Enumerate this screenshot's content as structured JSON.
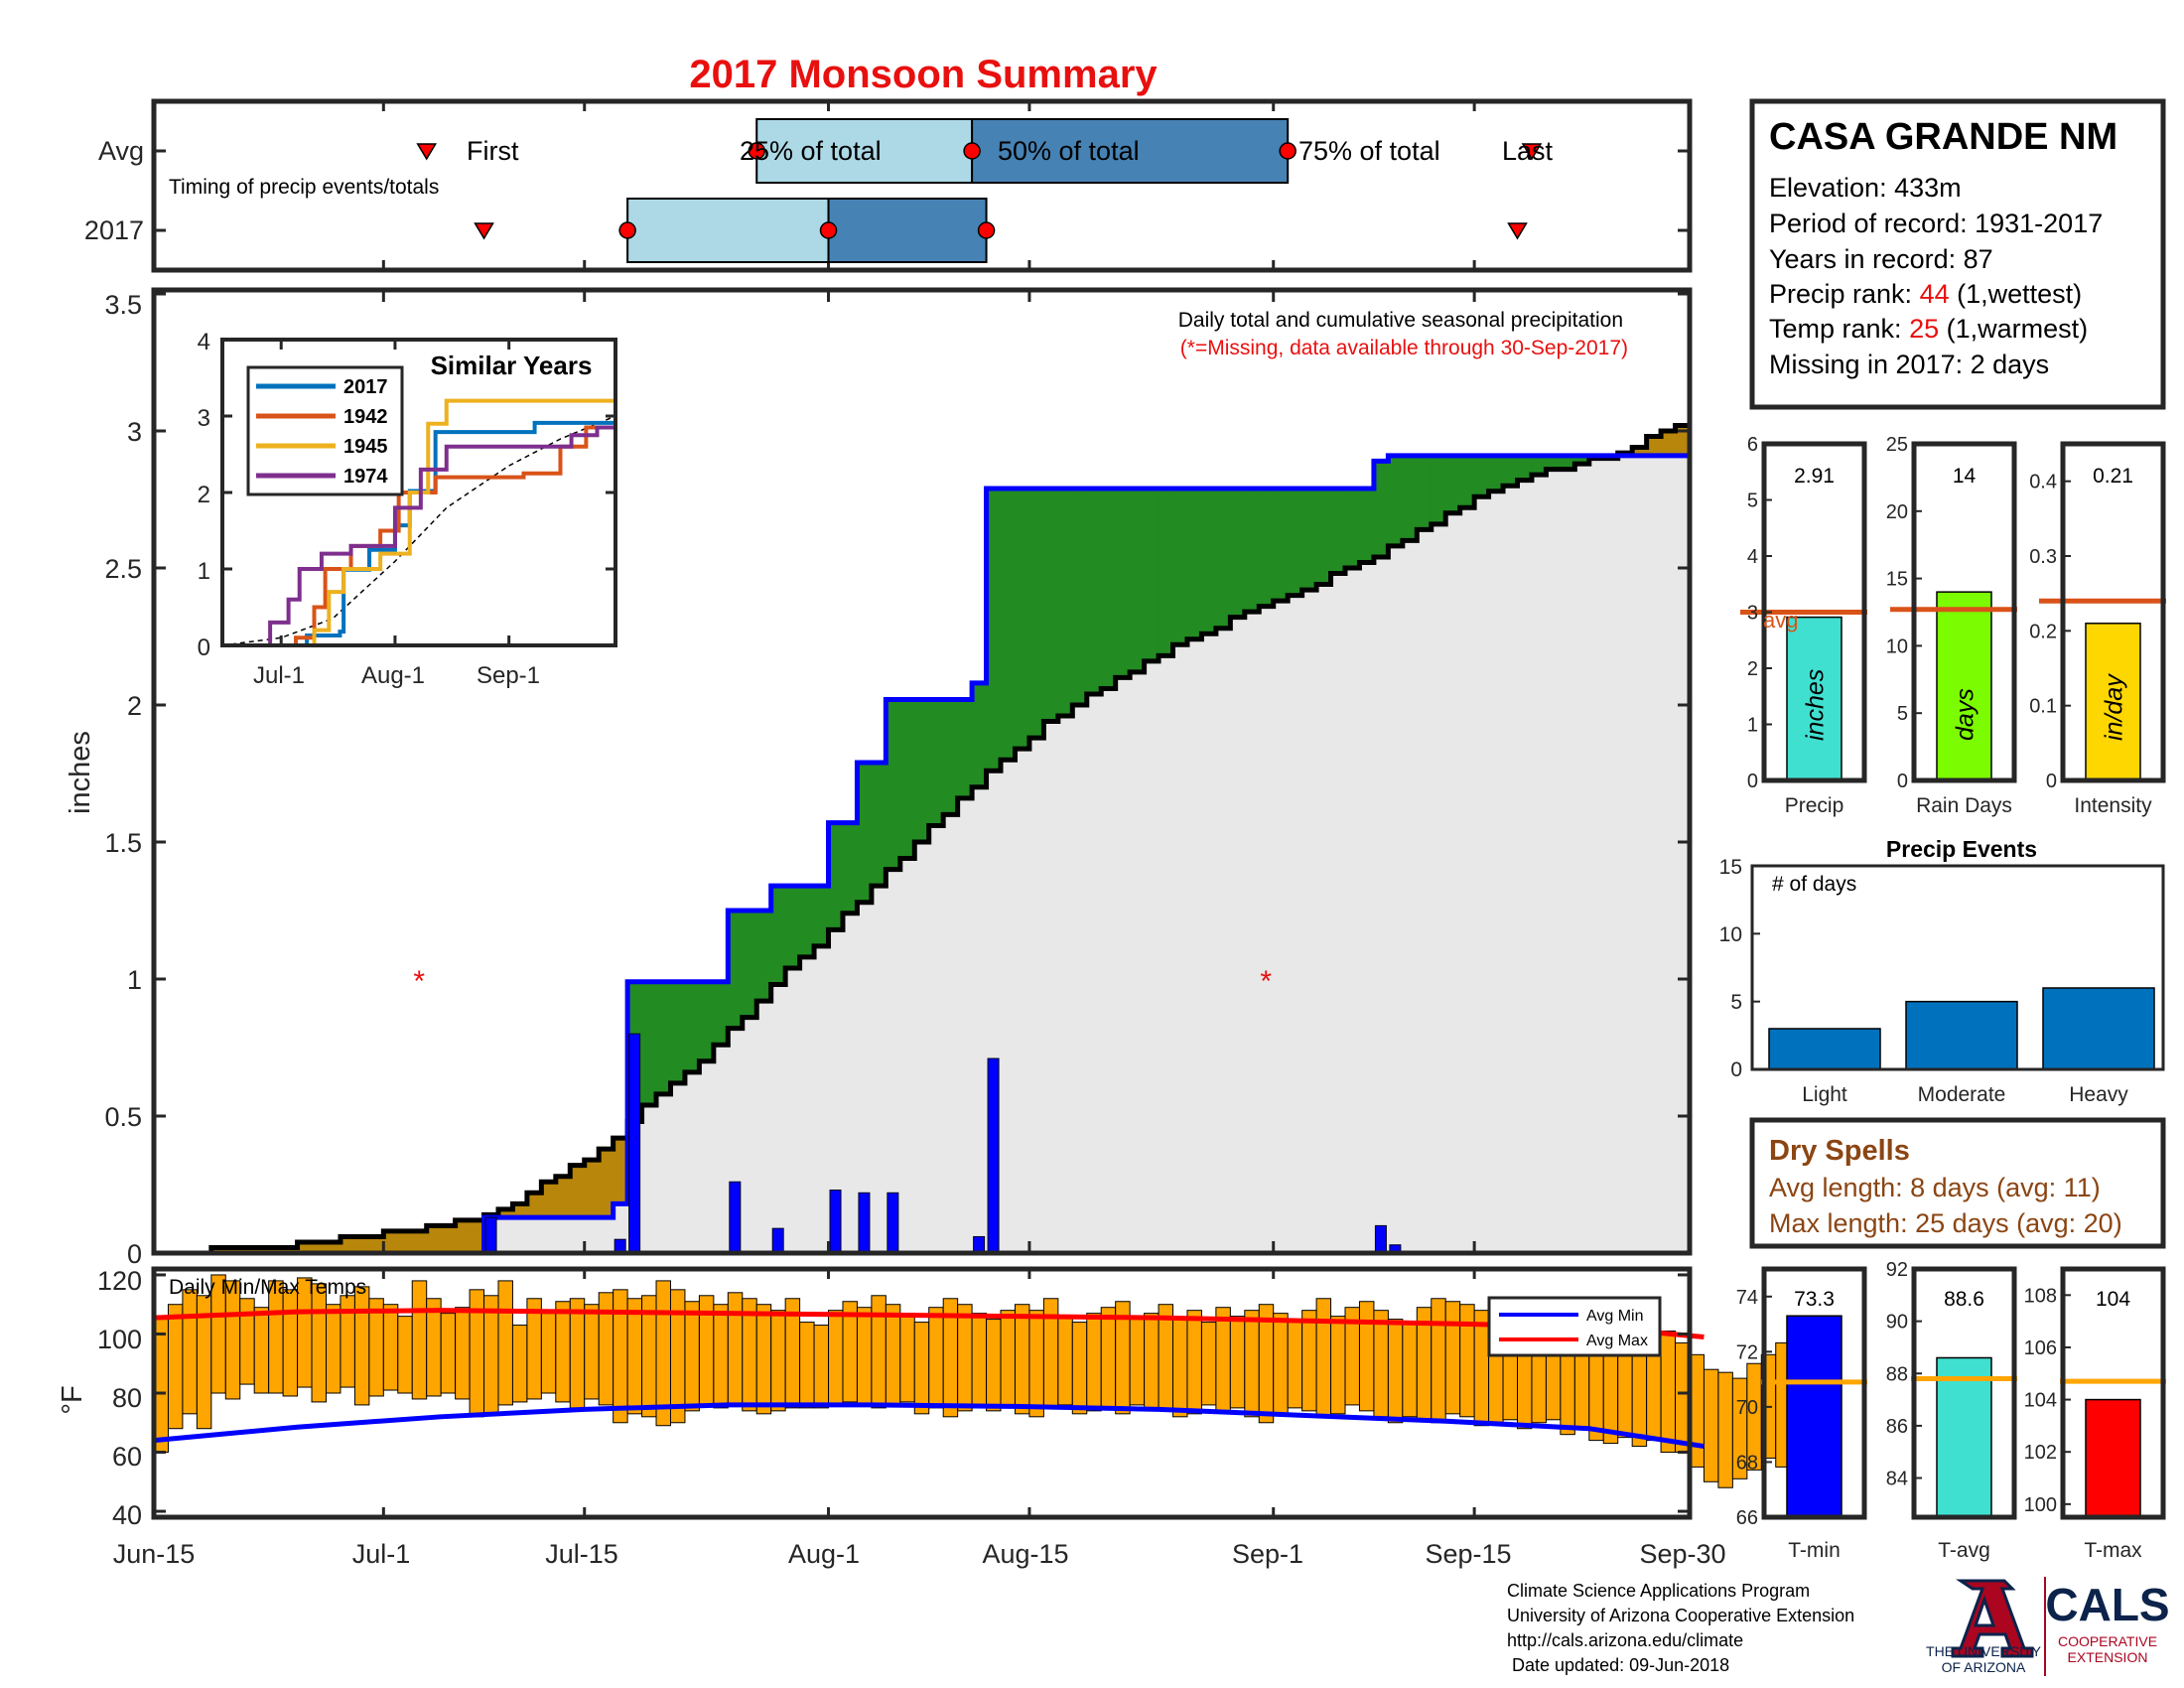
{
  "title": "2017 Monsoon Summary",
  "station": {
    "name": "CASA GRANDE NM",
    "lines": [
      {
        "label": "Elevation: 433m"
      },
      {
        "label": "Period of record: 1931-2017"
      },
      {
        "label": "Years in record: 87"
      },
      {
        "label": "Precip rank: ",
        "value": "44",
        "suffix": " (1,wettest)"
      },
      {
        "label": "Temp rank: ",
        "value": "25",
        "suffix": " (1,warmest)"
      },
      {
        "label": "Missing in 2017: 2 days"
      }
    ]
  },
  "timing": {
    "label": "Timing of precip events/totals",
    "rows": [
      "Avg",
      "2017"
    ],
    "avg_labels": {
      "first": "First",
      "p25": "25% of total",
      "p50": "50% of total",
      "p75": "75% of total",
      "last": "Last"
    },
    "avg": {
      "first": "Jul-04",
      "p25": "Jul-27",
      "p50": "Aug-11",
      "p75": "Sep-02",
      "last": "Sep-19"
    },
    "y2017": {
      "first": "Jul-08",
      "p25": "Jul-18",
      "p50": "Aug-01",
      "p75": "Aug-12",
      "last": "Sep-18"
    }
  },
  "main": {
    "annotation": "Daily total and cumulative seasonal precipitation",
    "missing_note": "(*=Missing, data available through 30-Sep-2017)",
    "ylabel": "inches",
    "ylim": [
      0,
      3.5
    ],
    "yticks": [
      "0",
      "0.5",
      "1",
      "1.5",
      "2",
      "2.5",
      "3",
      "3.5"
    ],
    "missing_days": [
      "Jul-03",
      "Aug-31"
    ]
  },
  "temps": {
    "label": "Daily Min/Max Temps",
    "ylabel": "°F",
    "yticks": [
      "40",
      "60",
      "80",
      "100",
      "120"
    ],
    "legend": [
      "Avg Min",
      "Avg Max"
    ]
  },
  "xaxis": {
    "ticks": [
      "Jun-15",
      "Jul-1",
      "Jul-15",
      "Aug-1",
      "Aug-15",
      "Sep-1",
      "Sep-15",
      "Sep-30"
    ]
  },
  "inset": {
    "title": "Similar Years",
    "yticks": [
      "0",
      "1",
      "2",
      "3",
      "4"
    ],
    "xticks": [
      "Jul-1",
      "Aug-1",
      "Sep-1"
    ],
    "legend": [
      "2017",
      "1942",
      "1945",
      "1974"
    ],
    "colors": [
      "#0072BD",
      "#D95319",
      "#EDB120",
      "#7E2F8E"
    ]
  },
  "small_bars": [
    {
      "label": "Precip",
      "inner": "inches",
      "value": "2.91",
      "avg_label": "avg",
      "yticks": [
        "0",
        "1",
        "2",
        "3",
        "4",
        "5",
        "6"
      ],
      "color": "#40E0D0"
    },
    {
      "label": "Rain Days",
      "inner": "days",
      "value": "14",
      "yticks": [
        "0",
        "5",
        "10",
        "15",
        "20",
        "25"
      ],
      "color": "#7CFC00"
    },
    {
      "label": "Intensity",
      "inner": "in/day",
      "value": "0.21",
      "yticks": [
        "0",
        "0.1",
        "0.2",
        "0.3",
        "0.4"
      ],
      "color": "#FFD700"
    }
  ],
  "events": {
    "title": "Precip Events",
    "sublabel": "# of days",
    "categories": [
      "Light",
      "Moderate",
      "Heavy"
    ],
    "yticks": [
      "0",
      "5",
      "10",
      "15"
    ]
  },
  "dry_spells": {
    "title": "Dry Spells",
    "avg_line": "Avg length: 8 days (avg: 11)",
    "max_line": "Max length: 25 days (avg: 20)"
  },
  "temp_bars": [
    {
      "label": "T-min",
      "value": "73.3",
      "yticks": [
        "66",
        "68",
        "70",
        "72",
        "74"
      ],
      "color": "#0000FF"
    },
    {
      "label": "T-avg",
      "value": "88.6",
      "yticks": [
        "84",
        "86",
        "88",
        "90",
        "92"
      ],
      "color": "#40E0D0"
    },
    {
      "label": "T-max",
      "value": "104",
      "yticks": [
        "100",
        "102",
        "104",
        "106",
        "108"
      ],
      "color": "#FF0000"
    }
  ],
  "footer": {
    "lines": [
      "Climate Science Applications Program",
      "University of Arizona Cooperative Extension",
      "http://cals.arizona.edu/climate",
      " Date updated: 09-Jun-2018"
    ],
    "ua_line1": "THE UNIVERSITY",
    "ua_line2": "OF ARIZONA",
    "cals": "CALS",
    "cals_sub1": "COOPERATIVE",
    "cals_sub2": "EXTENSION"
  },
  "chart_data": {
    "type": "bar",
    "season": {
      "start": "2017-06-15",
      "end": "2017-09-30"
    },
    "daily_precip": [
      {
        "date": "Jul-08",
        "value": 0.13
      },
      {
        "date": "Jul-17",
        "value": 0.05
      },
      {
        "date": "Jul-18",
        "value": 0.8
      },
      {
        "date": "Jul-25",
        "value": 0.26
      },
      {
        "date": "Jul-28",
        "value": 0.09
      },
      {
        "date": "Aug-01",
        "value": 0.23
      },
      {
        "date": "Aug-03",
        "value": 0.22
      },
      {
        "date": "Aug-05",
        "value": 0.22
      },
      {
        "date": "Aug-11",
        "value": 0.06
      },
      {
        "date": "Aug-12",
        "value": 0.71
      },
      {
        "date": "Sep-08",
        "value": 0.1
      },
      {
        "date": "Sep-09",
        "value": 0.03
      }
    ],
    "cumulative_2017": [
      {
        "date": "Jun-15",
        "value": 0
      },
      {
        "date": "Jul-08",
        "value": 0.13
      },
      {
        "date": "Jul-17",
        "value": 0.18
      },
      {
        "date": "Jul-18",
        "value": 0.99
      },
      {
        "date": "Jul-25",
        "value": 1.25
      },
      {
        "date": "Jul-28",
        "value": 1.34
      },
      {
        "date": "Aug-01",
        "value": 1.57
      },
      {
        "date": "Aug-03",
        "value": 1.79
      },
      {
        "date": "Aug-05",
        "value": 2.02
      },
      {
        "date": "Aug-11",
        "value": 2.08
      },
      {
        "date": "Aug-12",
        "value": 2.79
      },
      {
        "date": "Sep-08",
        "value": 2.89
      },
      {
        "date": "Sep-09",
        "value": 2.91
      },
      {
        "date": "Sep-30",
        "value": 2.91
      }
    ],
    "cumulative_avg": [
      {
        "date": "Jun-15",
        "value": 0
      },
      {
        "date": "Jun-25",
        "value": 0.03
      },
      {
        "date": "Jul-01",
        "value": 0.07
      },
      {
        "date": "Jul-06",
        "value": 0.11
      },
      {
        "date": "Jul-10",
        "value": 0.17
      },
      {
        "date": "Jul-12",
        "value": 0.25
      },
      {
        "date": "Jul-15",
        "value": 0.34
      },
      {
        "date": "Jul-17",
        "value": 0.42
      },
      {
        "date": "Jul-19",
        "value": 0.53
      },
      {
        "date": "Jul-22",
        "value": 0.65
      },
      {
        "date": "Jul-25",
        "value": 0.81
      },
      {
        "date": "Jul-28",
        "value": 0.98
      },
      {
        "date": "Aug-01",
        "value": 1.18
      },
      {
        "date": "Aug-04",
        "value": 1.34
      },
      {
        "date": "Aug-08",
        "value": 1.55
      },
      {
        "date": "Aug-12",
        "value": 1.76
      },
      {
        "date": "Aug-16",
        "value": 1.93
      },
      {
        "date": "Aug-20",
        "value": 2.07
      },
      {
        "date": "Aug-25",
        "value": 2.21
      },
      {
        "date": "Aug-31",
        "value": 2.36
      },
      {
        "date": "Sep-05",
        "value": 2.47
      },
      {
        "date": "Sep-10",
        "value": 2.6
      },
      {
        "date": "Sep-15",
        "value": 2.75
      },
      {
        "date": "Sep-20",
        "value": 2.85
      },
      {
        "date": "Sep-25",
        "value": 2.92
      },
      {
        "date": "Sep-30",
        "value": 3.05
      }
    ],
    "similar_years": [
      {
        "name": "2017",
        "points": [
          [
            "Jun-15",
            0
          ],
          [
            "Jul-08",
            0.13
          ],
          [
            "Jul-17",
            0.18
          ],
          [
            "Jul-18",
            0.99
          ],
          [
            "Jul-25",
            1.25
          ],
          [
            "Aug-01",
            1.57
          ],
          [
            "Aug-05",
            2.02
          ],
          [
            "Aug-12",
            2.79
          ],
          [
            "Sep-08",
            2.91
          ],
          [
            "Sep-30",
            2.91
          ]
        ]
      },
      {
        "name": "1942",
        "points": [
          [
            "Jun-15",
            0
          ],
          [
            "Jul-05",
            0.1
          ],
          [
            "Jul-10",
            0.5
          ],
          [
            "Jul-13",
            1.0
          ],
          [
            "Jul-20",
            1.3
          ],
          [
            "Jul-28",
            1.5
          ],
          [
            "Aug-02",
            2.0
          ],
          [
            "Aug-12",
            2.2
          ],
          [
            "Sep-05",
            2.25
          ],
          [
            "Sep-15",
            2.6
          ],
          [
            "Sep-22",
            2.85
          ],
          [
            "Sep-30",
            2.85
          ]
        ]
      },
      {
        "name": "1945",
        "points": [
          [
            "Jun-15",
            0
          ],
          [
            "Jul-10",
            0.2
          ],
          [
            "Jul-14",
            0.7
          ],
          [
            "Jul-18",
            1.0
          ],
          [
            "Jul-28",
            1.2
          ],
          [
            "Aug-05",
            2.0
          ],
          [
            "Aug-10",
            2.9
          ],
          [
            "Aug-15",
            3.2
          ],
          [
            "Sep-30",
            3.2
          ]
        ]
      },
      {
        "name": "1974",
        "points": [
          [
            "Jun-15",
            0
          ],
          [
            "Jun-28",
            0.3
          ],
          [
            "Jul-03",
            0.6
          ],
          [
            "Jul-06",
            1.0
          ],
          [
            "Jul-12",
            1.2
          ],
          [
            "Jul-20",
            1.3
          ],
          [
            "Aug-01",
            1.8
          ],
          [
            "Aug-08",
            2.3
          ],
          [
            "Aug-15",
            2.6
          ],
          [
            "Sep-18",
            2.75
          ],
          [
            "Sep-25",
            2.85
          ],
          [
            "Sep-30",
            2.85
          ]
        ]
      }
    ],
    "similar_years_avg": [
      [
        "Jun-15",
        0
      ],
      [
        "Jul-01",
        0.1
      ],
      [
        "Jul-15",
        0.35
      ],
      [
        "Aug-01",
        1.1
      ],
      [
        "Aug-15",
        1.8
      ],
      [
        "Sep-01",
        2.35
      ],
      [
        "Sep-15",
        2.7
      ],
      [
        "Sep-30",
        3.0
      ]
    ],
    "precip_summary": {
      "value": 2.91,
      "avg": 3.0,
      "ylim": [
        0,
        6
      ]
    },
    "rain_days": {
      "value": 14,
      "avg": 12.7,
      "ylim": [
        0,
        25
      ]
    },
    "intensity": {
      "value": 0.21,
      "avg": 0.24,
      "ylim": [
        0,
        0.45
      ]
    },
    "precip_events": {
      "categories": [
        "Light",
        "Moderate",
        "Heavy"
      ],
      "values": [
        3,
        5,
        6
      ],
      "ylim": [
        0,
        15
      ]
    },
    "temp_summary": [
      {
        "name": "T-min",
        "value": 73.3,
        "avg": 70.9,
        "ylim": [
          66,
          75
        ]
      },
      {
        "name": "T-avg",
        "value": 88.6,
        "avg": 87.8,
        "ylim": [
          82.5,
          92
        ]
      },
      {
        "name": "T-max",
        "value": 104,
        "avg": 104.7,
        "ylim": [
          99.5,
          109
        ]
      }
    ],
    "daily_temps_ylim": [
      38,
      122
    ],
    "daily_tmax": [
      105,
      110,
      115,
      113,
      120,
      118,
      112,
      109,
      118,
      115,
      119,
      117,
      110,
      113,
      116,
      112,
      110,
      106,
      118,
      112,
      107,
      109,
      115,
      113,
      118,
      103,
      112,
      107,
      111,
      112,
      110,
      114,
      115,
      112,
      113,
      118,
      115,
      111,
      113,
      110,
      114,
      112,
      110,
      108,
      112,
      104,
      103,
      108,
      111,
      109,
      113,
      110,
      107,
      104,
      109,
      112,
      110,
      107,
      105,
      108,
      110,
      108,
      112,
      106,
      104,
      107,
      109,
      111,
      105,
      107,
      110,
      105,
      108,
      104,
      109,
      106,
      108,
      110,
      107,
      105,
      108,
      112,
      106,
      109,
      111,
      108,
      105,
      104,
      109,
      112,
      111,
      110,
      108,
      110,
      106,
      103,
      104,
      110,
      106,
      105,
      102,
      99,
      101,
      96,
      98,
      101,
      97,
      93,
      88,
      87,
      85,
      90,
      93,
      97,
      93,
      95
    ],
    "daily_tmin": [
      60,
      68,
      73,
      68,
      80,
      78,
      83,
      80,
      80,
      79,
      82,
      77,
      80,
      82,
      76,
      79,
      81,
      80,
      78,
      79,
      80,
      78,
      72,
      73,
      76,
      77,
      78,
      80,
      77,
      75,
      78,
      76,
      70,
      73,
      72,
      69,
      70,
      74,
      76,
      75,
      76,
      74,
      73,
      74,
      75,
      75,
      75,
      76,
      77,
      76,
      75,
      76,
      77,
      73,
      75,
      72,
      74,
      76,
      74,
      75,
      73,
      72,
      75,
      76,
      73,
      74,
      75,
      73,
      76,
      75,
      74,
      72,
      73,
      76,
      74,
      75,
      72,
      70,
      73,
      75,
      74,
      72,
      73,
      76,
      74,
      72,
      70,
      72,
      71,
      70,
      73,
      72,
      69,
      70,
      71,
      68,
      70,
      71,
      66,
      68,
      64,
      63,
      65,
      62,
      64,
      60,
      60,
      55,
      50,
      48,
      51,
      54,
      58,
      55,
      57,
      62
    ],
    "avg_tmax": [
      [
        0,
        105.5
      ],
      [
        10,
        107.5
      ],
      [
        20,
        108.0
      ],
      [
        30,
        107.5
      ],
      [
        40,
        107.0
      ],
      [
        50,
        106.5
      ],
      [
        60,
        106.0
      ],
      [
        70,
        105.5
      ],
      [
        80,
        104.5
      ],
      [
        90,
        103.5
      ],
      [
        100,
        102.5
      ],
      [
        108,
        99.0
      ]
    ],
    "avg_tmin": [
      [
        0,
        64.0
      ],
      [
        10,
        68.5
      ],
      [
        20,
        72.0
      ],
      [
        30,
        74.5
      ],
      [
        40,
        76.0
      ],
      [
        50,
        76.0
      ],
      [
        60,
        75.5
      ],
      [
        70,
        74.5
      ],
      [
        80,
        72.5
      ],
      [
        90,
        70.5
      ],
      [
        100,
        68.0
      ],
      [
        108,
        62.0
      ]
    ]
  }
}
